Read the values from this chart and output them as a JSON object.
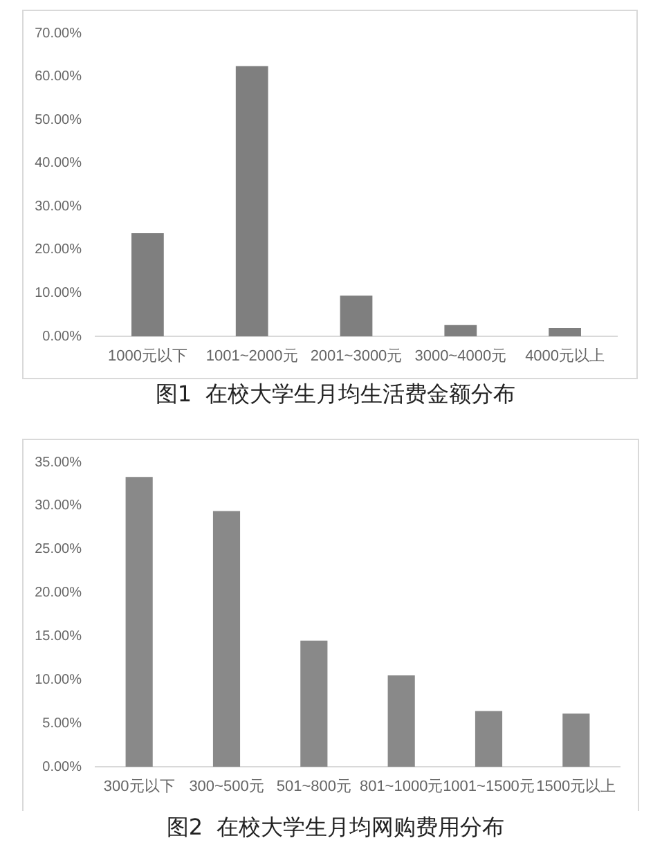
{
  "chart_data": [
    {
      "type": "bar",
      "title": "图1  在校大学生月均生活费金额分布",
      "categories": [
        "1000元以下",
        "1001~2000元",
        "2001~3000元",
        "3000~4000元",
        "4000元以上"
      ],
      "values": [
        23.8,
        62.4,
        9.4,
        2.6,
        1.9
      ],
      "color": "#7f7f7f",
      "ylim": [
        0,
        70
      ],
      "yticks": [
        {
          "value": 0,
          "label": "0.00%"
        },
        {
          "value": 10,
          "label": "10.00%"
        },
        {
          "value": 20,
          "label": "20.00%"
        },
        {
          "value": 30,
          "label": "30.00%"
        },
        {
          "value": 40,
          "label": "40.00%"
        },
        {
          "value": 50,
          "label": "50.00%"
        },
        {
          "value": 60,
          "label": "60.00%"
        },
        {
          "value": 70,
          "label": "70.00%"
        }
      ]
    },
    {
      "type": "bar",
      "title": "图2  在校大学生月均网购费用分布",
      "categories": [
        "300元以下",
        "300~500元",
        "501~800元",
        "801~1000元",
        "1001~1500元",
        "1500元以上"
      ],
      "values": [
        33.3,
        29.4,
        14.5,
        10.5,
        6.4,
        6.1
      ],
      "color": "#898989",
      "ylim": [
        0,
        35
      ],
      "yticks": [
        {
          "value": 0,
          "label": "0.00%"
        },
        {
          "value": 5,
          "label": "5.00%"
        },
        {
          "value": 10,
          "label": "10.00%"
        },
        {
          "value": 15,
          "label": "15.00%"
        },
        {
          "value": 20,
          "label": "20.00%"
        },
        {
          "value": 25,
          "label": "25.00%"
        },
        {
          "value": 30,
          "label": "30.00%"
        },
        {
          "value": 35,
          "label": "35.00%"
        }
      ]
    }
  ]
}
